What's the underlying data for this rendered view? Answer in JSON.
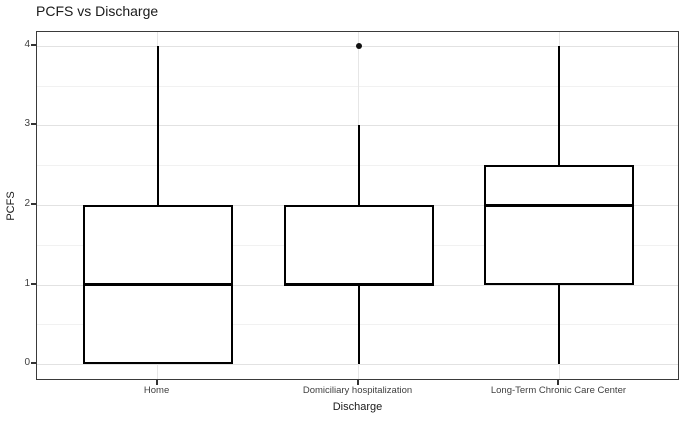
{
  "chart_data": {
    "type": "boxplot",
    "title": "PCFS vs Discharge",
    "xlabel": "Discharge",
    "ylabel": "PCFS",
    "categories": [
      "Home",
      "Domiciliary hospitalization",
      "Long-Term Chronic Care Center"
    ],
    "series": [
      {
        "category": "Home",
        "min": 0,
        "q1": 0,
        "median": 1,
        "q3": 2,
        "max": 4,
        "outliers": []
      },
      {
        "category": "Domiciliary hospitalization",
        "min": 0,
        "q1": 1,
        "median": 1,
        "q3": 2,
        "max": 3,
        "outliers": [
          4
        ]
      },
      {
        "category": "Long-Term Chronic Care Center",
        "min": 0,
        "q1": 1,
        "median": 2,
        "q3": 2.5,
        "max": 4,
        "outliers": []
      }
    ],
    "y_ticks": [
      0,
      1,
      2,
      3,
      4
    ],
    "y_minor_ticks": [
      0.5,
      1.5,
      2.5,
      3.5
    ],
    "ylim": [
      -0.2,
      4.2
    ],
    "grid": "on",
    "legend": "none",
    "colors": {
      "box_line": "#000000",
      "box_fill": "#ffffff",
      "major_grid": "#e2e2e2",
      "minor_grid": "#f1f1f1",
      "panel_border": "#3a3a3a",
      "tick_text": "#404040",
      "title_text": "#1a1a1a",
      "background": "#ffffff"
    }
  }
}
